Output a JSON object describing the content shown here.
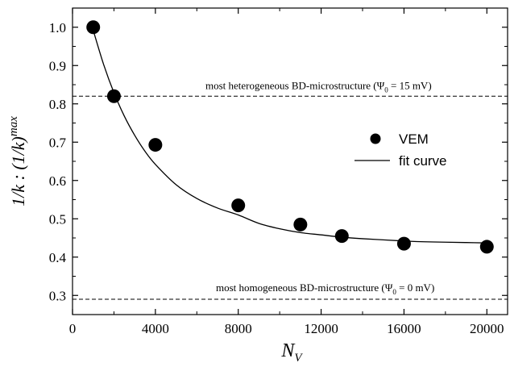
{
  "chart_data": {
    "type": "scatter",
    "xlabel": "N",
    "xlabel_sub": "V",
    "ylabel_main": "1/k : (1/k)",
    "ylabel_sup": "max",
    "xlim": [
      0,
      21000
    ],
    "ylim": [
      0.25,
      1.05
    ],
    "xticks": [
      0,
      4000,
      8000,
      12000,
      16000,
      20000
    ],
    "yticks": [
      0.3,
      0.4,
      0.5,
      0.6,
      0.7,
      0.8,
      0.9,
      1.0
    ],
    "xtick_labels": [
      "0",
      "4000",
      "8000",
      "12000",
      "16000",
      "20000"
    ],
    "ytick_labels": [
      "0.3",
      "0.4",
      "0.5",
      "0.6",
      "0.7",
      "0.8",
      "0.9",
      "1.0"
    ],
    "grid": false,
    "legend": {
      "position": "center-right",
      "entries": [
        "VEM",
        "fit curve"
      ]
    },
    "series": [
      {
        "name": "VEM",
        "kind": "points",
        "x": [
          1000,
          2000,
          4000,
          8000,
          11000,
          13000,
          16000,
          20000
        ],
        "y": [
          1.0,
          0.82,
          0.693,
          0.535,
          0.485,
          0.455,
          0.435,
          0.427
        ]
      },
      {
        "name": "fit curve",
        "kind": "line",
        "x": [
          1000,
          1500,
          2000,
          2500,
          3000,
          3500,
          4000,
          5000,
          6000,
          7000,
          8000,
          9000,
          10000,
          11000,
          12000,
          13000,
          14000,
          15000,
          16000,
          17000,
          18000,
          19000,
          20000
        ],
        "y": [
          0.992,
          0.903,
          0.829,
          0.768,
          0.718,
          0.676,
          0.642,
          0.589,
          0.553,
          0.528,
          0.51,
          0.488,
          0.474,
          0.464,
          0.458,
          0.452,
          0.448,
          0.445,
          0.442,
          0.44,
          0.439,
          0.438,
          0.437
        ]
      }
    ],
    "reference_lines": [
      {
        "y": 0.82,
        "label_main": "most heterogeneous BD-microstructure (Ψ",
        "label_sub": "0",
        "label_tail": " = 15 mV)"
      },
      {
        "y": 0.29,
        "label_main": "most homogeneous BD-microstructure (Ψ",
        "label_sub": "0",
        "label_tail": " = 0 mV)"
      }
    ]
  }
}
